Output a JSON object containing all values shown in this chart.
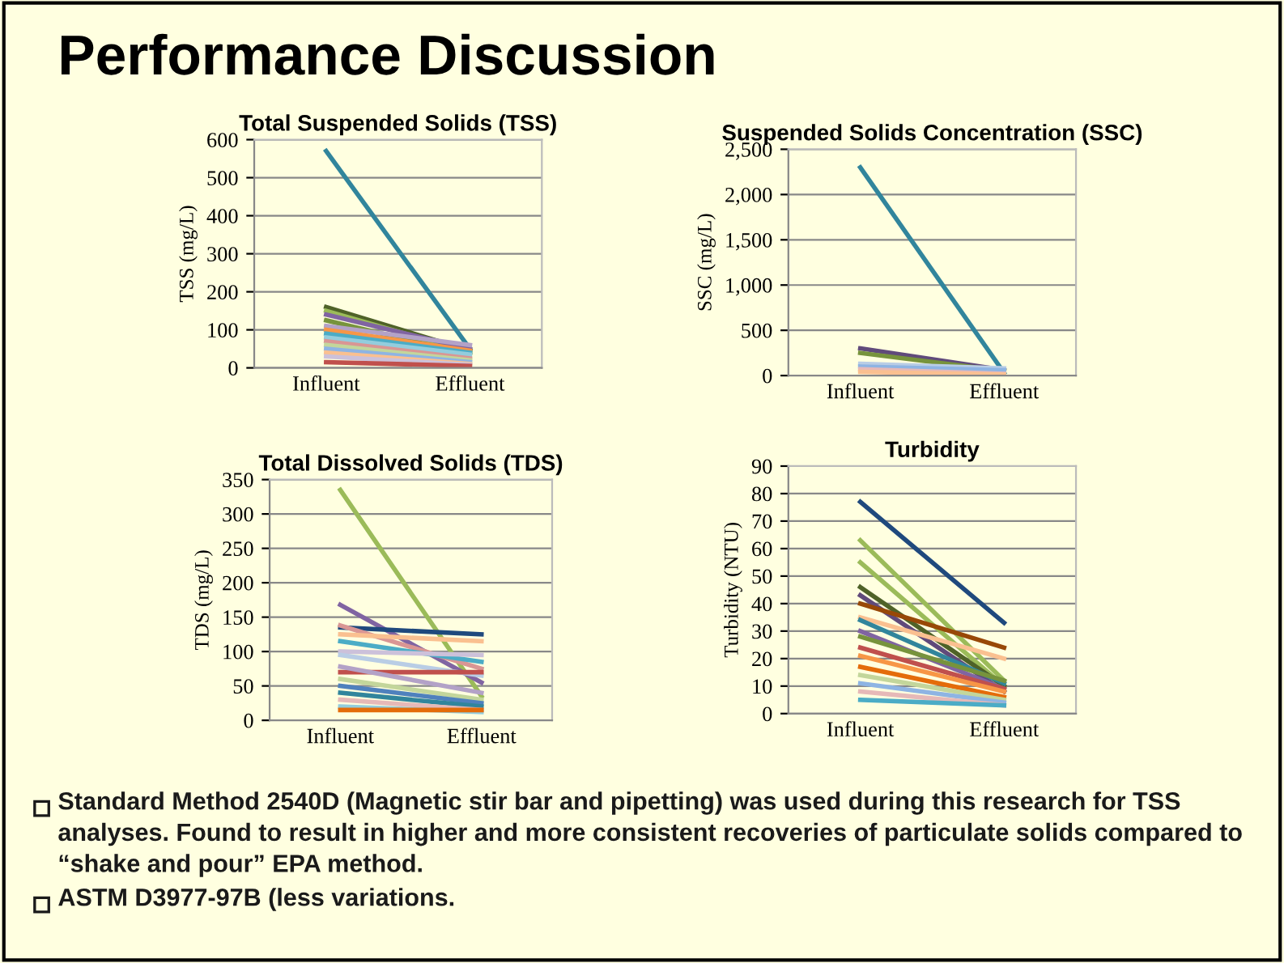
{
  "chart_data": [
    {
      "type": "other",
      "title": "Performance Discussion",
      "annotations": [
        "Standard Method 2540D (Magnetic stir bar and pipetting) was used during this research for TSS analyses. Found to result in higher and more consistent recoveries of particulate solids compared to “shake and pour” EPA method.",
        "ASTM D3977-97B (less variations."
      ]
    },
    {
      "type": "line",
      "title": "Total Suspended Solids (TSS)",
      "ylabel": "TSS (mg/L)",
      "categories": [
        "Influent",
        "Effluent"
      ],
      "ylim": [
        0,
        600
      ],
      "yticks": [
        0,
        100,
        200,
        300,
        400,
        500,
        600
      ],
      "grid": "y",
      "series": [
        {
          "color": "#31859c",
          "values": [
            570,
            50
          ]
        },
        {
          "color": "#4f6228",
          "values": [
            160,
            45
          ]
        },
        {
          "color": "#9bbb59",
          "values": [
            150,
            40
          ]
        },
        {
          "color": "#8064a2",
          "values": [
            140,
            50
          ]
        },
        {
          "color": "#77933c",
          "values": [
            125,
            35
          ]
        },
        {
          "color": "#b3a2c7",
          "values": [
            110,
            60
          ]
        },
        {
          "color": "#f79646",
          "values": [
            100,
            45
          ]
        },
        {
          "color": "#4bacc6",
          "values": [
            90,
            40
          ]
        },
        {
          "color": "#93cddd",
          "values": [
            80,
            35
          ]
        },
        {
          "color": "#d99694",
          "values": [
            70,
            25
          ]
        },
        {
          "color": "#c3d69b",
          "values": [
            60,
            20
          ]
        },
        {
          "color": "#8eb4e3",
          "values": [
            50,
            15
          ]
        },
        {
          "color": "#fac090",
          "values": [
            40,
            10
          ]
        },
        {
          "color": "#ccc1da",
          "values": [
            30,
            8
          ]
        },
        {
          "color": "#c0504d",
          "values": [
            15,
            5
          ]
        }
      ]
    },
    {
      "type": "line",
      "title": "Suspended Solids Concentration (SSC)",
      "ylabel": "SSC (mg/L)",
      "categories": [
        "Influent",
        "Effluent"
      ],
      "ylim": [
        0,
        2500
      ],
      "yticks": [
        0,
        500,
        {
          "value": 1000,
          "label": "1,000"
        },
        {
          "value": 1500,
          "label": "1,500"
        },
        {
          "value": 2000,
          "label": "2,000"
        },
        {
          "value": 2500,
          "label": "2,500"
        }
      ],
      "grid": "y",
      "series": [
        {
          "color": "#31859c",
          "values": [
            2300,
            30
          ]
        },
        {
          "color": "#604a7b",
          "values": [
            300,
            60
          ]
        },
        {
          "color": "#77933c",
          "values": [
            250,
            50
          ]
        },
        {
          "color": "#b9cde5",
          "values": [
            130,
            80
          ]
        },
        {
          "color": "#8eb4e3",
          "values": [
            100,
            60
          ]
        },
        {
          "color": "#e6b9b8",
          "values": [
            70,
            20
          ]
        },
        {
          "color": "#fac090",
          "values": [
            40,
            10
          ]
        }
      ]
    },
    {
      "type": "line",
      "title": "Total Dissolved Solids (TDS)",
      "ylabel": "TDS (mg/L)",
      "categories": [
        "Influent",
        "Effluent"
      ],
      "ylim": [
        0,
        350
      ],
      "yticks": [
        0,
        50,
        100,
        150,
        200,
        250,
        300,
        350
      ],
      "grid": "y",
      "series": [
        {
          "color": "#9bbb59",
          "values": [
            335,
            35
          ]
        },
        {
          "color": "#8064a2",
          "values": [
            168,
            55
          ]
        },
        {
          "color": "#1f497d",
          "values": [
            135,
            125
          ]
        },
        {
          "color": "#d99694",
          "values": [
            138,
            75
          ]
        },
        {
          "color": "#fac090",
          "values": [
            125,
            115
          ]
        },
        {
          "color": "#4bacc6",
          "values": [
            115,
            85
          ]
        },
        {
          "color": "#ccc1da",
          "values": [
            100,
            95
          ]
        },
        {
          "color": "#b9cde5",
          "values": [
            95,
            65
          ]
        },
        {
          "color": "#c0504d",
          "values": [
            70,
            70
          ]
        },
        {
          "color": "#b3a2c7",
          "values": [
            78,
            40
          ]
        },
        {
          "color": "#c3d69b",
          "values": [
            60,
            30
          ]
        },
        {
          "color": "#4f81bd",
          "values": [
            50,
            25
          ]
        },
        {
          "color": "#31859c",
          "values": [
            40,
            20
          ]
        },
        {
          "color": "#e6b9b8",
          "values": [
            30,
            15
          ]
        },
        {
          "color": "#93cddd",
          "values": [
            20,
            12
          ]
        },
        {
          "color": "#e46c0a",
          "values": [
            15,
            15
          ]
        }
      ]
    },
    {
      "type": "line",
      "title": "Turbidity",
      "ylabel": "Turbidity (NTU)",
      "categories": [
        "Influent",
        "Effluent"
      ],
      "ylim": [
        0,
        90
      ],
      "yticks": [
        0,
        10,
        20,
        30,
        40,
        50,
        60,
        70,
        80,
        90
      ],
      "grid": "y",
      "series": [
        {
          "color": "#1f497d",
          "values": [
            77,
            33
          ]
        },
        {
          "color": "#9bbb59",
          "values": [
            63,
            12
          ]
        },
        {
          "color": "#9bbb59",
          "values": [
            55,
            10
          ]
        },
        {
          "color": "#4f6228",
          "values": [
            46,
            10
          ]
        },
        {
          "color": "#604a7b",
          "values": [
            43,
            8
          ]
        },
        {
          "color": "#984807",
          "values": [
            40,
            24
          ]
        },
        {
          "color": "#fac090",
          "values": [
            35,
            20
          ]
        },
        {
          "color": "#31859c",
          "values": [
            34,
            11
          ]
        },
        {
          "color": "#8064a2",
          "values": [
            30,
            9
          ]
        },
        {
          "color": "#77933c",
          "values": [
            28,
            12
          ]
        },
        {
          "color": "#c0504d",
          "values": [
            24,
            9
          ]
        },
        {
          "color": "#f79646",
          "values": [
            21,
            8
          ]
        },
        {
          "color": "#e46c0a",
          "values": [
            17,
            6
          ]
        },
        {
          "color": "#c3d69b",
          "values": [
            14,
            5
          ]
        },
        {
          "color": "#8eb4e3",
          "values": [
            11,
            4
          ]
        },
        {
          "color": "#e6b9b8",
          "values": [
            8,
            3
          ]
        },
        {
          "color": "#4bacc6",
          "values": [
            5,
            3
          ]
        }
      ]
    }
  ]
}
